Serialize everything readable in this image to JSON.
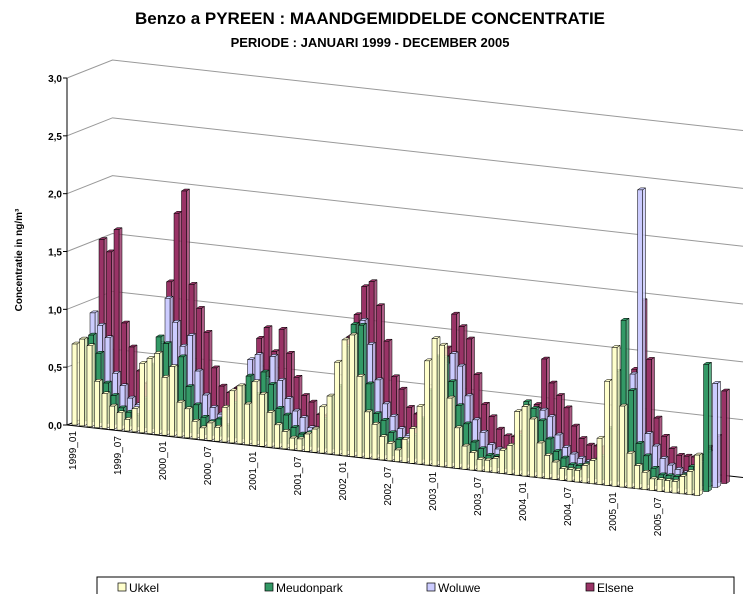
{
  "chart_data": {
    "type": "bar3d",
    "title": "Benzo a PYREEN : MAANDGEMIDDELDE CONCENTRATIE",
    "subtitle": "PERIODE : JANUARI 1999 - DECEMBER 2005",
    "y_label": "Concentratie in ng/m³",
    "categories": [
      "1999_01",
      null,
      null,
      null,
      null,
      null,
      "1999_07",
      null,
      null,
      null,
      null,
      null,
      "2000_01",
      null,
      null,
      null,
      null,
      null,
      "2000_07",
      null,
      null,
      null,
      null,
      null,
      "2001_01",
      null,
      null,
      null,
      null,
      null,
      "2001_07",
      null,
      null,
      null,
      null,
      null,
      "2002_01",
      null,
      null,
      null,
      null,
      null,
      "2002_07",
      null,
      null,
      null,
      null,
      null,
      "2003_01",
      null,
      null,
      null,
      null,
      null,
      "2003_07",
      null,
      null,
      null,
      null,
      null,
      "2004_01",
      null,
      null,
      null,
      null,
      null,
      "2004_07",
      null,
      null,
      null,
      null,
      null,
      "2005_01",
      null,
      null,
      null,
      null,
      null,
      "2005_07",
      null,
      null,
      null,
      null,
      null
    ],
    "ylim": [
      0,
      3
    ],
    "yticks": [
      {
        "value": 0,
        "label": "0,0"
      },
      {
        "value": 0.5,
        "label": "0,5"
      },
      {
        "value": 1,
        "label": "1,0"
      },
      {
        "value": 1.5,
        "label": "1,5"
      },
      {
        "value": 2,
        "label": "2,0"
      },
      {
        "value": 2.5,
        "label": "2,5"
      },
      {
        "value": 3,
        "label": "3,0"
      }
    ],
    "grid": true,
    "series": [
      {
        "name": "Ukkel",
        "color": "#ffffcc",
        "values": [
          0.7,
          0.75,
          0.7,
          0.4,
          0.3,
          0.2,
          0.15,
          0.1,
          0.2,
          0.6,
          0.65,
          0.7,
          0.5,
          0.6,
          0.3,
          0.25,
          0.15,
          0.1,
          0.15,
          0.12,
          0.3,
          0.45,
          0.5,
          0.35,
          0.55,
          0.45,
          0.3,
          0.2,
          0.15,
          0.1,
          0.1,
          0.15,
          0.2,
          0.4,
          0.5,
          0.8,
          1.0,
          1.05,
          0.7,
          0.4,
          0.3,
          0.2,
          0.15,
          0.1,
          0.2,
          0.3,
          0.5,
          0.9,
          1.1,
          1.05,
          0.6,
          0.35,
          0.2,
          0.15,
          0.1,
          0.1,
          0.12,
          0.2,
          0.25,
          0.55,
          0.6,
          0.5,
          0.3,
          0.2,
          0.15,
          0.1,
          0.1,
          0.1,
          0.15,
          0.2,
          0.4,
          0.9,
          1.2,
          0.7,
          0.3,
          0.2,
          0.15,
          0.1,
          0.1,
          0.1,
          0.1,
          0.15,
          0.2,
          0.35
        ]
      },
      {
        "name": "Meudonpark",
        "color": "#339966",
        "values": [
          0.7,
          0.75,
          0.6,
          0.35,
          0.25,
          0.15,
          0.12,
          0.1,
          0.25,
          0.55,
          0.8,
          0.75,
          0.55,
          0.65,
          0.4,
          0.25,
          0.15,
          0.12,
          0.15,
          0.1,
          0.3,
          0.45,
          0.55,
          0.4,
          0.6,
          0.5,
          0.3,
          0.25,
          0.15,
          0.1,
          0.12,
          0.15,
          0.25,
          0.45,
          0.55,
          0.9,
          1.1,
          1.1,
          0.6,
          0.35,
          0.3,
          0.2,
          0.15,
          0.12,
          0.2,
          0.35,
          0.6,
          0.9,
          0.9,
          0.7,
          0.5,
          0.35,
          0.2,
          0.15,
          0.1,
          0.1,
          0.15,
          0.2,
          0.3,
          0.6,
          0.55,
          0.45,
          0.3,
          0.2,
          0.15,
          0.1,
          0.1,
          0.12,
          0.15,
          0.2,
          0.45,
          0.95,
          1.4,
          0.8,
          0.35,
          0.25,
          0.15,
          0.1,
          0.1,
          0.1,
          0.12,
          0.2,
          0.3,
          1.1
        ]
      },
      {
        "name": "Woluwe",
        "color": "#ccccff",
        "values": [
          0.9,
          0.8,
          0.7,
          0.4,
          0.3,
          0.2,
          0.15,
          0.12,
          0.3,
          0.7,
          1.1,
          0.9,
          0.7,
          0.8,
          0.5,
          0.3,
          0.2,
          0.15,
          0.2,
          0.15,
          0.4,
          0.65,
          0.7,
          0.5,
          0.7,
          0.5,
          0.35,
          0.25,
          0.2,
          0.12,
          0.12,
          0.2,
          0.3,
          0.5,
          0.6,
          0.95,
          1.1,
          0.9,
          0.6,
          0.4,
          0.3,
          0.2,
          0.15,
          0.12,
          0.25,
          0.4,
          0.6,
          0.8,
          0.9,
          0.8,
          0.55,
          0.35,
          0.25,
          0.15,
          0.12,
          0.1,
          0.15,
          0.2,
          0.3,
          0.5,
          0.5,
          0.45,
          0.3,
          0.2,
          0.15,
          0.12,
          0.1,
          0.12,
          0.15,
          0.25,
          0.35,
          0.6,
          0.9,
          2.5,
          0.4,
          0.3,
          0.2,
          0.15,
          0.12,
          0.1,
          0.15,
          0.2,
          0.3,
          0.9
        ]
      },
      {
        "name": "Elsene",
        "color": "#993366",
        "values": [
          1.5,
          1.4,
          1.6,
          0.8,
          0.6,
          0.4,
          0.3,
          0.25,
          0.5,
          1.2,
          1.8,
          2.0,
          1.2,
          1.0,
          0.8,
          0.5,
          0.35,
          0.3,
          0.35,
          0.3,
          0.6,
          0.8,
          0.9,
          0.7,
          0.9,
          0.7,
          0.5,
          0.35,
          0.3,
          0.2,
          0.2,
          0.3,
          0.4,
          0.9,
          1.1,
          1.35,
          1.4,
          1.2,
          0.9,
          0.6,
          0.5,
          0.35,
          0.3,
          0.25,
          0.4,
          0.6,
          0.9,
          1.2,
          1.1,
          1.0,
          0.7,
          0.45,
          0.35,
          0.25,
          0.2,
          0.2,
          0.25,
          0.35,
          0.5,
          0.9,
          0.7,
          0.6,
          0.5,
          0.35,
          0.25,
          0.2,
          0.2,
          0.2,
          0.25,
          0.35,
          0.5,
          0.9,
          1.5,
          1.0,
          0.5,
          0.35,
          0.25,
          0.2,
          0.2,
          0.2,
          0.2,
          0.3,
          0.4,
          0.8
        ]
      }
    ]
  }
}
